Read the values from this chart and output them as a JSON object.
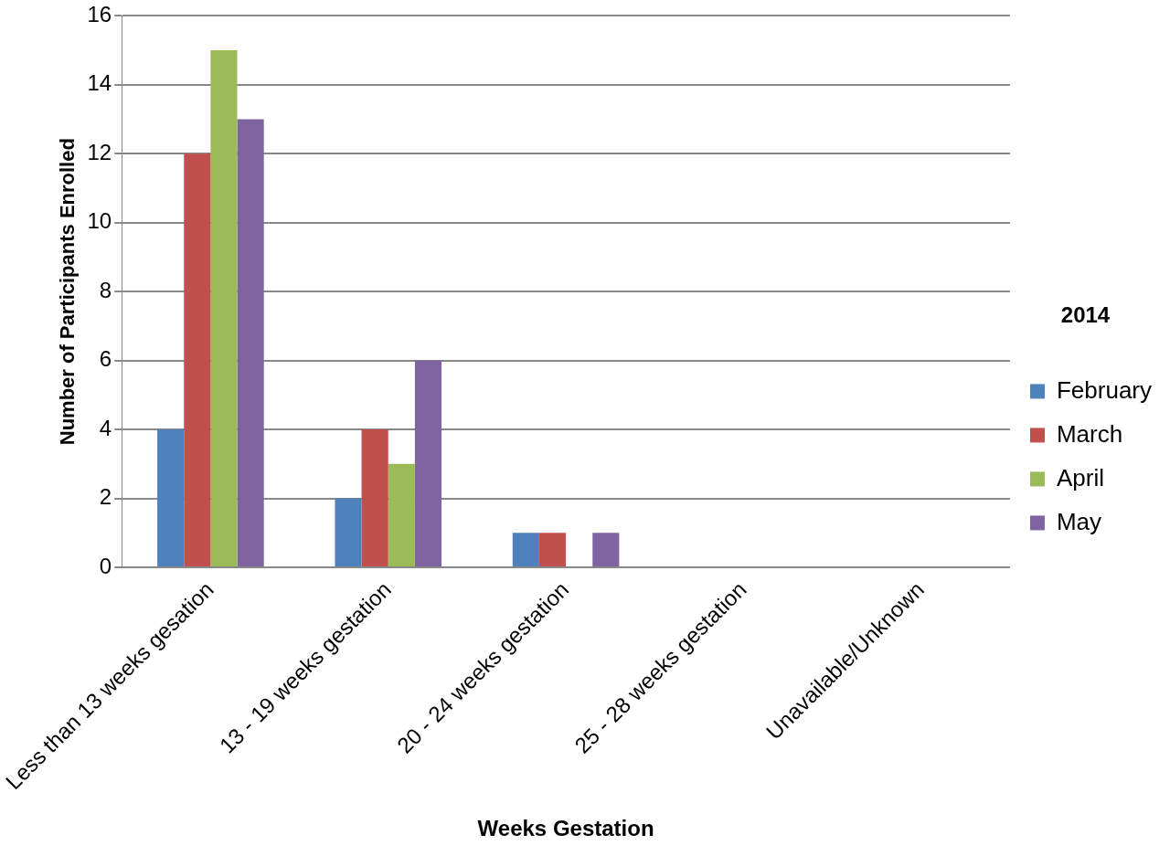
{
  "chart_data": {
    "type": "bar",
    "xlabel": "Weeks Gestation",
    "ylabel": "Number of Participants Enrolled",
    "legend_title": "2014",
    "categories": [
      "Less than 13 weeks gesation",
      "13 - 19 weeks gestation",
      "20 - 24 weeks gestation",
      "25 - 28 weeks gestation",
      "Unavailable/Unknown"
    ],
    "series": [
      {
        "name": "February",
        "color": "#4f81bd",
        "values": [
          4,
          2,
          1,
          0,
          0
        ]
      },
      {
        "name": "March",
        "color": "#c0504d",
        "values": [
          12,
          4,
          1,
          0,
          0
        ]
      },
      {
        "name": "April",
        "color": "#9bbb59",
        "values": [
          15,
          3,
          0,
          0,
          0
        ]
      },
      {
        "name": "May",
        "color": "#8064a2",
        "values": [
          13,
          6,
          1,
          0,
          0
        ]
      }
    ],
    "ylim": [
      0,
      16
    ],
    "yticks": [
      0,
      2,
      4,
      6,
      8,
      10,
      12,
      14,
      16
    ],
    "grid": "y",
    "legend": "right"
  }
}
